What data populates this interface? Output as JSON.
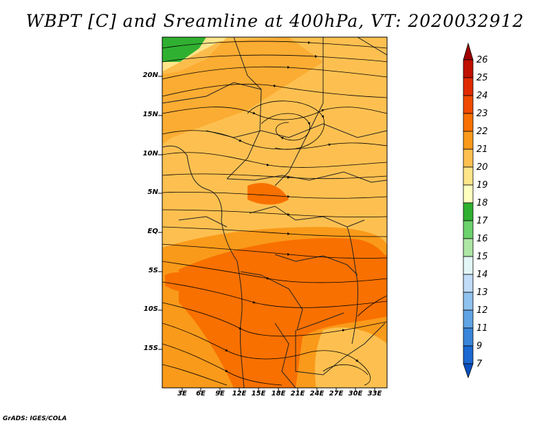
{
  "title": "WBPT [C] and Sreamline at 400hPa, VT: 2020032912",
  "credit": "GrADS: IGES/COLA",
  "map": {
    "lat_labels": [
      "20N",
      "15N",
      "10N",
      "5N",
      "EQ",
      "5S",
      "10S",
      "15S"
    ],
    "lon_labels": [
      "3E",
      "6E",
      "9E",
      "12E",
      "15E",
      "18E",
      "21E",
      "24E",
      "27E",
      "30E",
      "33E"
    ]
  },
  "colorbar": {
    "labels": [
      "26",
      "25",
      "24",
      "23",
      "22",
      "21",
      "20",
      "19",
      "18",
      "17",
      "16",
      "15",
      "14",
      "13",
      "12",
      "11",
      "9",
      "7"
    ],
    "colors": [
      "#a00000",
      "#c01000",
      "#e02a00",
      "#f04a00",
      "#f87000",
      "#fa9a1a",
      "#fdc050",
      "#ffe58a",
      "#ffffc0",
      "#30b030",
      "#6cd26c",
      "#aee6a6",
      "#e2f6f6",
      "#c0dcf6",
      "#90c2ee",
      "#60a4e4",
      "#3a86da",
      "#1a68d0",
      "#0a50c0"
    ]
  }
}
